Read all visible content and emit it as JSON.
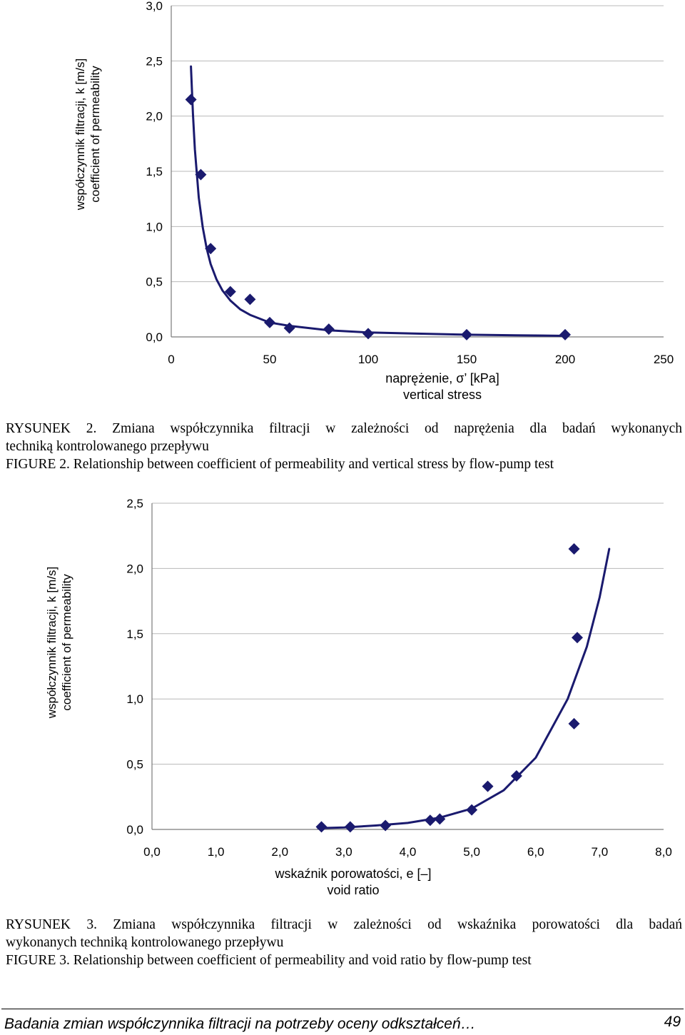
{
  "chart_data": [
    {
      "type": "scatter",
      "x_tick_labels": [
        "0",
        "50",
        "100",
        "150",
        "200",
        "250"
      ],
      "y_tick_labels": [
        "0,0",
        "0,5",
        "1,0",
        "1,5",
        "2,0",
        "2,5",
        "3,0"
      ],
      "xlabel_line1": "naprężenie, σ’ [kPa]",
      "xlabel_line2": "vertical stress",
      "ylabel_line1": "współczynnik filtracji, k [m/s]",
      "ylabel_line2": "coefficient of permeability",
      "xlim": [
        0,
        250
      ],
      "ylim": [
        0,
        3.0
      ],
      "grid": "horizontal",
      "marker": "diamond",
      "color": "#1a1a6e",
      "series": [
        {
          "x": [
            10,
            15,
            20,
            30,
            40,
            50,
            60,
            80,
            100,
            150,
            200
          ],
          "y": [
            2.15,
            1.47,
            0.8,
            0.41,
            0.34,
            0.13,
            0.08,
            0.07,
            0.03,
            0.02,
            0.02
          ]
        }
      ],
      "trendline": {
        "x": [
          10,
          11,
          12,
          14,
          16,
          18,
          20,
          23,
          26,
          30,
          35,
          40,
          50,
          60,
          70,
          80,
          100,
          125,
          150,
          175,
          200
        ],
        "y": [
          2.45,
          2.02,
          1.7,
          1.26,
          0.99,
          0.8,
          0.66,
          0.52,
          0.42,
          0.33,
          0.25,
          0.2,
          0.13,
          0.1,
          0.08,
          0.06,
          0.04,
          0.03,
          0.02,
          0.015,
          0.01
        ]
      }
    },
    {
      "type": "scatter",
      "x_tick_labels": [
        "0,0",
        "1,0",
        "2,0",
        "3,0",
        "4,0",
        "5,0",
        "6,0",
        "7,0",
        "8,0"
      ],
      "y_tick_labels": [
        "0,0",
        "0,5",
        "1,0",
        "1,5",
        "2,0",
        "2,5"
      ],
      "xlabel_line1": "wskaźnik porowatości, e [–]",
      "xlabel_line2": "void ratio",
      "ylabel_line1": "współczynnik filtracji, k [m/s]",
      "ylabel_line2": "coefficient of permeability",
      "xlim": [
        0,
        8
      ],
      "ylim": [
        0,
        2.5
      ],
      "grid": "horizontal",
      "marker": "diamond",
      "color": "#1a1a6e",
      "series": [
        {
          "x": [
            2.65,
            3.1,
            3.65,
            4.35,
            4.5,
            5.0,
            5.25,
            5.7,
            6.6,
            6.65,
            6.6
          ],
          "y": [
            0.02,
            0.02,
            0.03,
            0.07,
            0.08,
            0.15,
            0.33,
            0.41,
            0.81,
            1.47,
            2.15
          ]
        }
      ],
      "trendline": {
        "x": [
          2.6,
          3.0,
          3.5,
          4.0,
          4.5,
          5.0,
          5.5,
          6.0,
          6.5,
          6.8,
          7.0,
          7.15
        ],
        "y": [
          0.01,
          0.015,
          0.03,
          0.05,
          0.09,
          0.16,
          0.3,
          0.55,
          1.0,
          1.4,
          1.78,
          2.15
        ]
      }
    }
  ],
  "figures": [
    {
      "caption_pl_line1": "RYSUNEK 2. Zmiana współczynnika filtracji w zależności od naprężenia dla badań wykonanych",
      "caption_pl_line2": "techniką kontrolowanego przepływu",
      "caption_en": "FIGURE 2. Relationship between coefficient of permeability and vertical stress by flow-pump test"
    },
    {
      "caption_pl_line1": "RYSUNEK 3. Zmiana współczynnika filtracji w zależności od wskaźnika porowatości dla badań",
      "caption_pl_line2": "wykonanych techniką kontrolowanego przepływu",
      "caption_en": "FIGURE 3. Relationship between coefficient of permeability and void ratio by flow-pump test"
    }
  ],
  "footer": {
    "title": "Badania zmian współczynnika filtracji na potrzeby oceny odkształceń…",
    "page": "49"
  }
}
